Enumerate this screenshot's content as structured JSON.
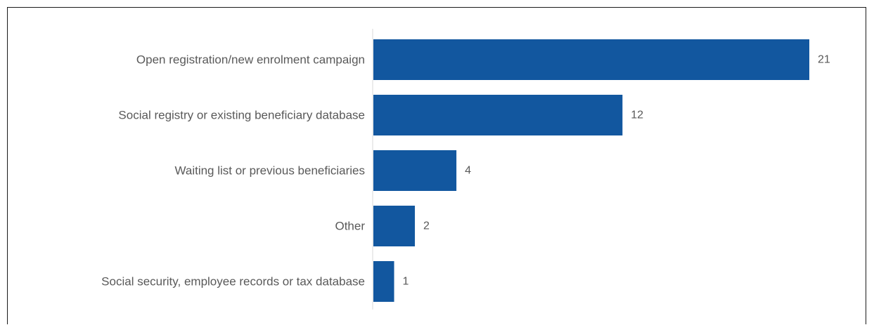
{
  "chart_data": {
    "type": "bar",
    "orientation": "horizontal",
    "categories": [
      "Open registration/new enrolment campaign",
      "Social registry or existing beneficiary database",
      "Waiting list or previous beneficiaries",
      "Other",
      "Social security, employee records or tax database"
    ],
    "values": [
      21,
      12,
      4,
      2,
      1
    ],
    "value_labels": [
      "21",
      "12",
      "4",
      "2",
      "1"
    ],
    "xlim": [
      0,
      21
    ],
    "grid": false,
    "legend": "none",
    "bar_color": "#12579f"
  }
}
